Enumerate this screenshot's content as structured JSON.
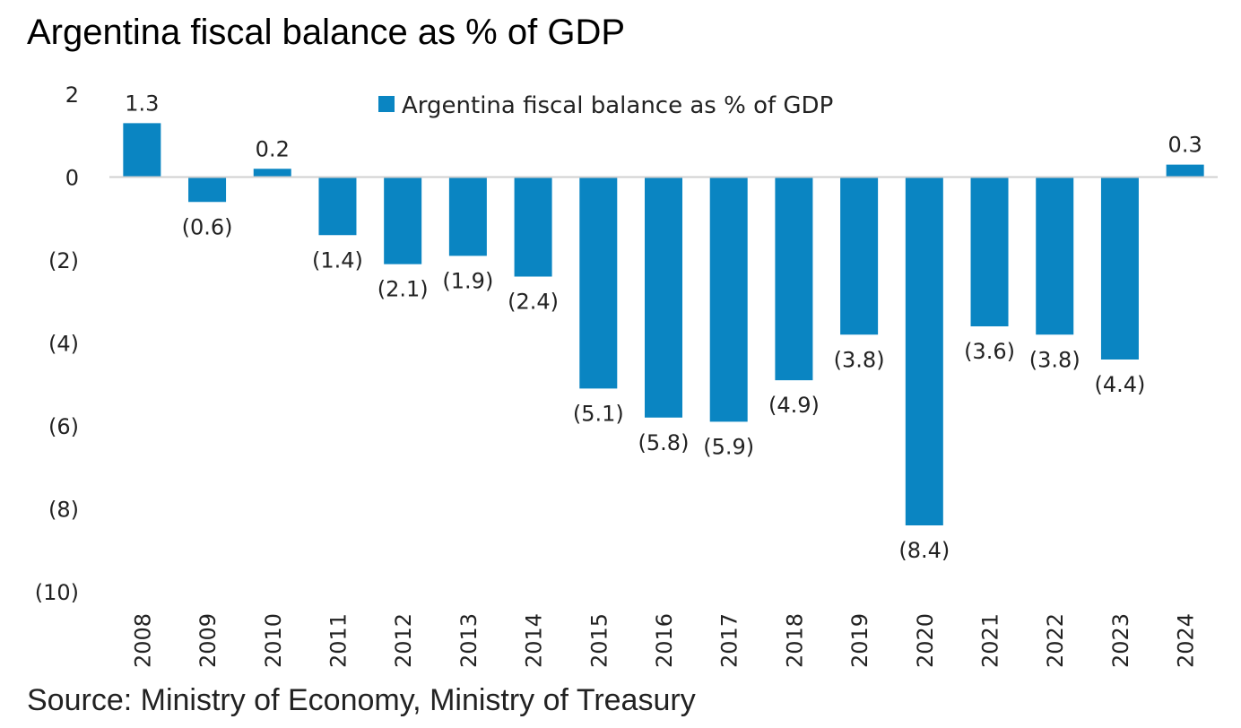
{
  "page": {
    "title": "Argentina fiscal balance as % of GDP",
    "source": "Source: Ministry of Economy, Ministry of Treasury"
  },
  "chart_data": {
    "type": "bar",
    "title": "Argentina fiscal balance as % of GDP",
    "categories": [
      "2008",
      "2009",
      "2010",
      "2011",
      "2012",
      "2013",
      "2014",
      "2015",
      "2016",
      "2017",
      "2018",
      "2019",
      "2020",
      "2021",
      "2022",
      "2023",
      "2024"
    ],
    "series": [
      {
        "name": "Argentina fiscal balance as % of GDP",
        "values": [
          1.3,
          -0.6,
          0.2,
          -1.4,
          -2.1,
          -1.9,
          -2.4,
          -5.1,
          -5.8,
          -5.9,
          -4.9,
          -3.8,
          -8.4,
          -3.6,
          -3.8,
          -4.4,
          0.3
        ],
        "data_labels": [
          "1.3",
          "(0.6)",
          "0.2",
          "(1.4)",
          "(2.1)",
          "(1.9)",
          "(2.4)",
          "(5.1)",
          "(5.8)",
          "(5.9)",
          "(4.9)",
          "(3.8)",
          "(8.4)",
          "(3.6)",
          "(3.8)",
          "(4.4)",
          "0.3"
        ],
        "color": "#0a85c2"
      }
    ],
    "ylim": [
      -10,
      2
    ],
    "yticks": [
      2,
      0,
      -2,
      -4,
      -6,
      -8,
      -10
    ],
    "ytick_labels": [
      "2",
      "0",
      "(2)",
      "(4)",
      "(6)",
      "(8)",
      "(10)"
    ],
    "xlabel": "",
    "ylabel": "",
    "grid": false,
    "legend_position": "top-center",
    "colors": {
      "bar": "#0a85c2",
      "zero_line": "#d0d0d0"
    }
  }
}
